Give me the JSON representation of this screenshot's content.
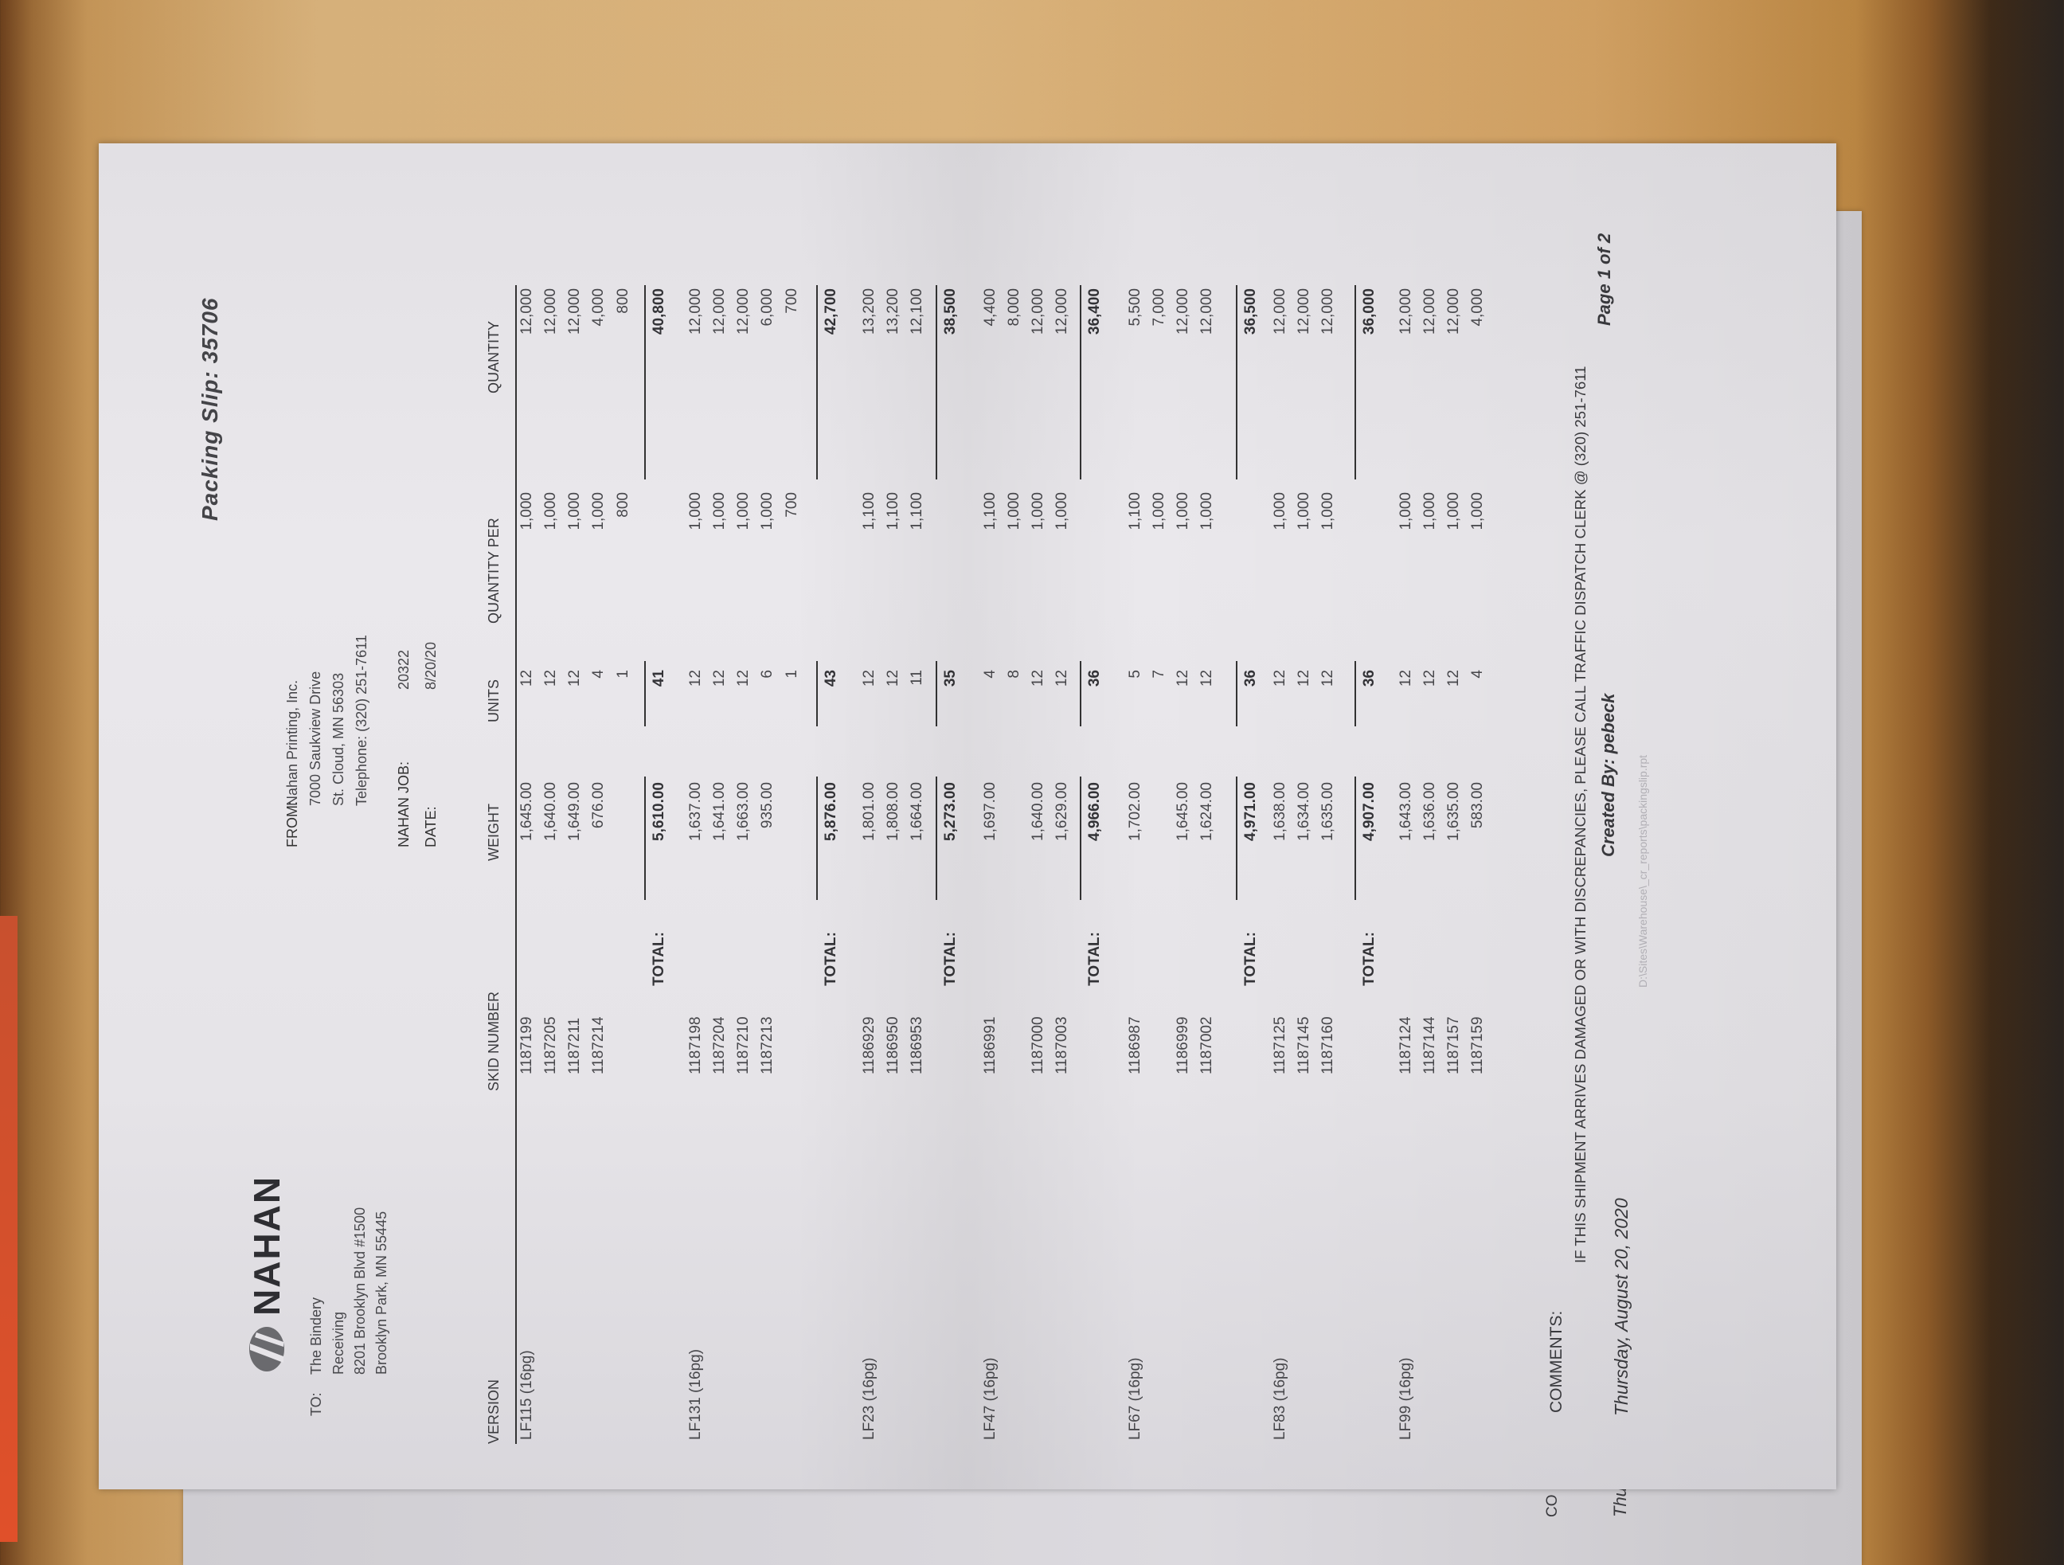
{
  "header": {
    "title": "Packing Slip: 35706",
    "logo_text": "NAHAN",
    "to": {
      "label": "TO:",
      "lines": [
        "The Bindery",
        "Receiving",
        "8201 Brooklyn Blvd #1500",
        "Brooklyn Park, MN  55445"
      ]
    },
    "from": {
      "label": "FROM:",
      "lines": [
        "Nahan Printing, Inc.",
        "7000 Saukview Drive",
        "St. Cloud, MN  56303",
        "Telephone: (320) 251-7611"
      ]
    },
    "job": {
      "label": "NAHAN JOB:",
      "value": "20322"
    },
    "date": {
      "label": "DATE:",
      "value": "8/20/20"
    }
  },
  "table": {
    "columns": [
      "VERSION",
      "SKID NUMBER",
      "WEIGHT",
      "UNITS",
      "QUANTITY PER",
      "QUANTITY"
    ],
    "total_label": "TOTAL:",
    "groups": [
      {
        "version": "LF115 (16pg)",
        "rows": [
          [
            "1187199",
            "1,645.00",
            "12",
            "1,000",
            "12,000"
          ],
          [
            "1187205",
            "1,640.00",
            "12",
            "1,000",
            "12,000"
          ],
          [
            "1187211",
            "1,649.00",
            "12",
            "1,000",
            "12,000"
          ],
          [
            "1187214",
            "676.00",
            "4",
            "1,000",
            "4,000"
          ],
          [
            "",
            "",
            "1",
            "800",
            "800"
          ]
        ],
        "total": {
          "weight": "5,610.00",
          "units": "41",
          "quantity": "40,800"
        }
      },
      {
        "version": "LF131 (16pg)",
        "rows": [
          [
            "1187198",
            "1,637.00",
            "12",
            "1,000",
            "12,000"
          ],
          [
            "1187204",
            "1,641.00",
            "12",
            "1,000",
            "12,000"
          ],
          [
            "1187210",
            "1,663.00",
            "12",
            "1,000",
            "12,000"
          ],
          [
            "1187213",
            "935.00",
            "6",
            "1,000",
            "6,000"
          ],
          [
            "",
            "",
            "1",
            "700",
            "700"
          ]
        ],
        "total": {
          "weight": "5,876.00",
          "units": "43",
          "quantity": "42,700"
        }
      },
      {
        "version": "LF23 (16pg)",
        "rows": [
          [
            "1186929",
            "1,801.00",
            "12",
            "1,100",
            "13,200"
          ],
          [
            "1186950",
            "1,808.00",
            "12",
            "1,100",
            "13,200"
          ],
          [
            "1186953",
            "1,664.00",
            "11",
            "1,100",
            "12,100"
          ]
        ],
        "total": {
          "weight": "5,273.00",
          "units": "35",
          "quantity": "38,500"
        }
      },
      {
        "version": "LF47 (16pg)",
        "rows": [
          [
            "1186991",
            "1,697.00",
            "4",
            "1,100",
            "4,400"
          ],
          [
            "",
            "",
            "8",
            "1,000",
            "8,000"
          ],
          [
            "1187000",
            "1,640.00",
            "12",
            "1,000",
            "12,000"
          ],
          [
            "1187003",
            "1,629.00",
            "12",
            "1,000",
            "12,000"
          ]
        ],
        "total": {
          "weight": "4,966.00",
          "units": "36",
          "quantity": "36,400"
        }
      },
      {
        "version": "LF67 (16pg)",
        "rows": [
          [
            "1186987",
            "1,702.00",
            "5",
            "1,100",
            "5,500"
          ],
          [
            "",
            "",
            "7",
            "1,000",
            "7,000"
          ],
          [
            "1186999",
            "1,645.00",
            "12",
            "1,000",
            "12,000"
          ],
          [
            "1187002",
            "1,624.00",
            "12",
            "1,000",
            "12,000"
          ]
        ],
        "total": {
          "weight": "4,971.00",
          "units": "36",
          "quantity": "36,500"
        }
      },
      {
        "version": "LF83 (16pg)",
        "rows": [
          [
            "1187125",
            "1,638.00",
            "12",
            "1,000",
            "12,000"
          ],
          [
            "1187145",
            "1,634.00",
            "12",
            "1,000",
            "12,000"
          ],
          [
            "1187160",
            "1,635.00",
            "12",
            "1,000",
            "12,000"
          ]
        ],
        "total": {
          "weight": "4,907.00",
          "units": "36",
          "quantity": "36,000"
        }
      },
      {
        "version": "LF99 (16pg)",
        "rows": [
          [
            "1187124",
            "1,643.00",
            "12",
            "1,000",
            "12,000"
          ],
          [
            "1187144",
            "1,636.00",
            "12",
            "1,000",
            "12,000"
          ],
          [
            "1187157",
            "1,635.00",
            "12",
            "1,000",
            "12,000"
          ],
          [
            "1187159",
            "583.00",
            "4",
            "1,000",
            "4,000"
          ]
        ],
        "total": null
      }
    ]
  },
  "footer": {
    "comments_label": "COMMENTS:",
    "notice": "IF THIS SHIPMENT ARRIVES DAMAGED OR WITH DISCREPANCIES, PLEASE CALL TRAFFIC DISPATCH CLERK @ (320) 251-7611",
    "date": "Thursday, August 20, 2020",
    "created_by": "Created By: pebeck",
    "page": "Page 1 of 2",
    "report_path": "D:\\Sites\\Warehouse\\_cr_reports\\packingslip.rpt"
  },
  "underlying_page": {
    "fragments": [
      "CO",
      "Thu"
    ]
  }
}
